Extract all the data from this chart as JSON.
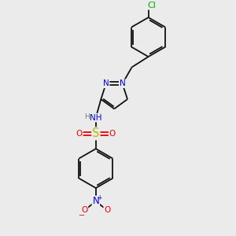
{
  "bg_color": "#ebebeb",
  "bond_color": "#111111",
  "N_color": "#0000ee",
  "O_color": "#ee0000",
  "S_color": "#bbbb00",
  "Cl_color": "#00aa00",
  "font_size": 7.5,
  "bond_lw": 1.3,
  "xlim": [
    -0.3,
    4.5
  ],
  "ylim": [
    -0.5,
    6.8
  ]
}
